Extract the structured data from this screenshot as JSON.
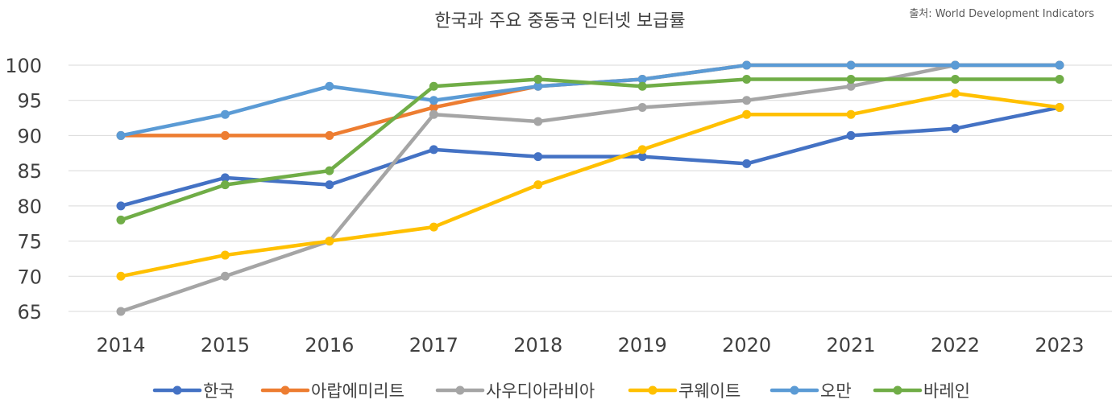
{
  "chart_data": {
    "type": "line",
    "title": "한국과 주요 중동국 인터넷 보급률",
    "source": "출처: World Development Indicators",
    "xlabel": "",
    "ylabel": "",
    "ylim": [
      65,
      100
    ],
    "yticks": [
      "65",
      "70",
      "75",
      "80",
      "85",
      "90",
      "95",
      "100"
    ],
    "grid": true,
    "legend": "bottom",
    "categories": [
      "2014",
      "2015",
      "2016",
      "2017",
      "2018",
      "2019",
      "2020",
      "2021",
      "2022",
      "2023"
    ],
    "series": [
      {
        "name": "한국",
        "color": "#4472C4",
        "values": [
          80,
          84,
          83,
          88,
          87,
          87,
          86,
          90,
          91,
          94
        ]
      },
      {
        "name": "아랍에미리트",
        "color": "#ED7D31",
        "values": [
          90,
          90,
          90,
          94,
          97,
          98,
          100,
          100,
          100,
          100
        ]
      },
      {
        "name": "사우디아라비아",
        "color": "#A5A5A5",
        "values": [
          65,
          70,
          75,
          93,
          92,
          94,
          95,
          97,
          100,
          100
        ]
      },
      {
        "name": "쿠웨이트",
        "color": "#FFC000",
        "values": [
          70,
          73,
          75,
          77,
          83,
          88,
          93,
          93,
          96,
          94
        ]
      },
      {
        "name": "오만",
        "color": "#5B9BD5",
        "values": [
          90,
          93,
          97,
          95,
          97,
          98,
          100,
          100,
          100,
          100
        ]
      },
      {
        "name": "바레인",
        "color": "#70AD47",
        "values": [
          78,
          83,
          85,
          97,
          98,
          97,
          98,
          98,
          98,
          98
        ]
      }
    ]
  }
}
